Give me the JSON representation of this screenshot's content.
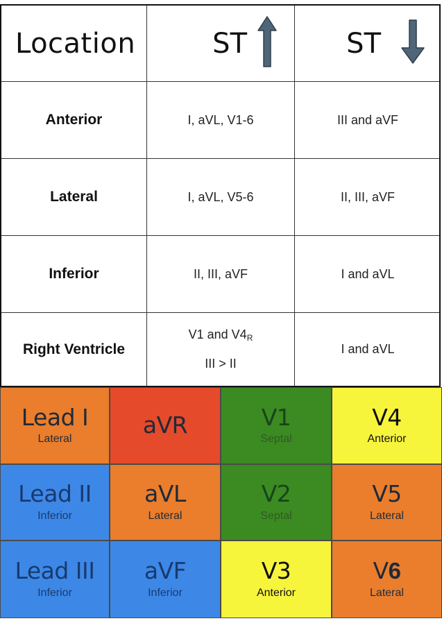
{
  "table": {
    "headers": {
      "location": "Location",
      "st_elevation": "ST",
      "st_depression": "ST"
    },
    "rows": [
      {
        "location": "Anterior",
        "st_up": "I, aVL, V1-6",
        "st_down": "III and aVF"
      },
      {
        "location": "Lateral",
        "st_up": "I, aVL, V5-6",
        "st_down": "II, III, aVF"
      },
      {
        "location": "Inferior",
        "st_up": "II, III, aVF",
        "st_down": "I and aVL"
      },
      {
        "location": "Right Ventricle",
        "st_up_line1": "V1 and V4",
        "st_up_line1_sub": "R",
        "st_up_line2": "III > II",
        "st_down": "I and aVL"
      }
    ]
  },
  "leads": [
    [
      {
        "name": "Lead I",
        "area": "Lateral",
        "color": "#ea7e2c"
      },
      {
        "name": "aVR",
        "area": "",
        "color": "#e54a2a"
      },
      {
        "name": "V1",
        "area": "Septal",
        "color": "#3c8a22"
      },
      {
        "name": "V4",
        "area": "Anterior",
        "color": "#f7f43c"
      }
    ],
    [
      {
        "name": "Lead II",
        "area": "Inferior",
        "color": "#3d88e6"
      },
      {
        "name": "aVL",
        "area": "Lateral",
        "color": "#ea7e2c"
      },
      {
        "name": "V2",
        "area": "Septal",
        "color": "#3c8a22"
      },
      {
        "name": "V5",
        "area": "Lateral",
        "color": "#ea7e2c"
      }
    ],
    [
      {
        "name": "Lead III",
        "area": "Inferior",
        "color": "#3d88e6"
      },
      {
        "name": "aVF",
        "area": "Inferior",
        "color": "#3d88e6"
      },
      {
        "name": "V3",
        "area": "Anterior",
        "color": "#f7f43c"
      },
      {
        "name_prefix": "V",
        "name_suffix": "6",
        "area": "Lateral",
        "color": "#ea7e2c"
      }
    ]
  ],
  "icons": {
    "st_elevation": "arrow-up-icon",
    "st_depression": "arrow-down-icon",
    "arrow_color": "#4f6578"
  }
}
